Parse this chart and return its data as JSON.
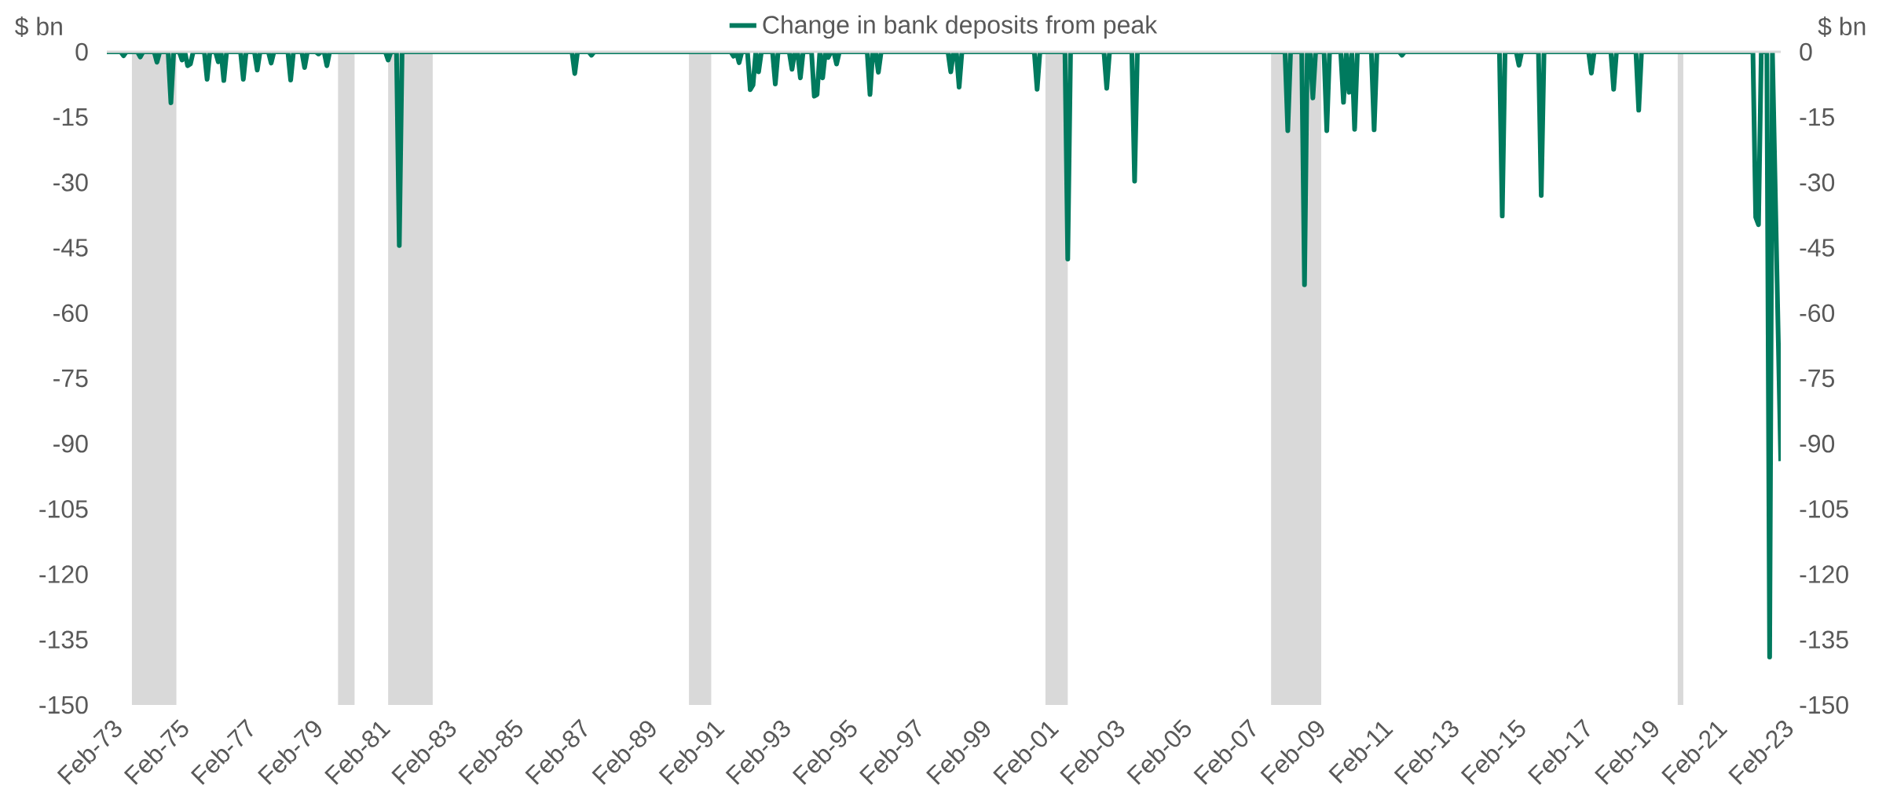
{
  "chart_data": {
    "type": "line",
    "ylabel": "$ bn",
    "y2label": "$ bn",
    "legend": "top",
    "xlim": [
      "1973-02",
      "2023-03"
    ],
    "xticks": [
      {
        "value": "1973-02",
        "label": "Feb-73"
      },
      {
        "value": "1975-02",
        "label": "Feb-75"
      },
      {
        "value": "1977-02",
        "label": "Feb-77"
      },
      {
        "value": "1979-02",
        "label": "Feb-79"
      },
      {
        "value": "1981-02",
        "label": "Feb-81"
      },
      {
        "value": "1983-02",
        "label": "Feb-83"
      },
      {
        "value": "1985-02",
        "label": "Feb-85"
      },
      {
        "value": "1987-02",
        "label": "Feb-87"
      },
      {
        "value": "1989-02",
        "label": "Feb-89"
      },
      {
        "value": "1991-02",
        "label": "Feb-91"
      },
      {
        "value": "1993-02",
        "label": "Feb-93"
      },
      {
        "value": "1995-02",
        "label": "Feb-95"
      },
      {
        "value": "1997-02",
        "label": "Feb-97"
      },
      {
        "value": "1999-02",
        "label": "Feb-99"
      },
      {
        "value": "2001-02",
        "label": "Feb-01"
      },
      {
        "value": "2003-02",
        "label": "Feb-03"
      },
      {
        "value": "2005-02",
        "label": "Feb-05"
      },
      {
        "value": "2007-02",
        "label": "Feb-07"
      },
      {
        "value": "2009-02",
        "label": "Feb-09"
      },
      {
        "value": "2011-02",
        "label": "Feb-11"
      },
      {
        "value": "2013-02",
        "label": "Feb-13"
      },
      {
        "value": "2015-02",
        "label": "Feb-15"
      },
      {
        "value": "2017-02",
        "label": "Feb-17"
      },
      {
        "value": "2019-02",
        "label": "Feb-19"
      },
      {
        "value": "2021-02",
        "label": "Feb-21"
      },
      {
        "value": "2023-02",
        "label": "Feb-23"
      }
    ],
    "ylim": [
      -150,
      0
    ],
    "yticks": [
      0,
      -15,
      -30,
      -45,
      -60,
      -75,
      -90,
      -105,
      -120,
      -135,
      -150
    ],
    "y2lim": [
      -150,
      0
    ],
    "y2ticks": [
      0,
      -15,
      -30,
      -45,
      -60,
      -75,
      -90,
      -105,
      -120,
      -135,
      -150
    ],
    "bands": [
      {
        "axis": "x",
        "from": "1973-11",
        "to": "1975-03",
        "color": "#d9d9d9"
      },
      {
        "axis": "x",
        "from": "1980-01",
        "to": "1980-07",
        "color": "#d9d9d9"
      },
      {
        "axis": "x",
        "from": "1981-07",
        "to": "1982-11",
        "color": "#d9d9d9"
      },
      {
        "axis": "x",
        "from": "1990-07",
        "to": "1991-03",
        "color": "#d9d9d9"
      },
      {
        "axis": "x",
        "from": "2001-03",
        "to": "2001-11",
        "color": "#d9d9d9"
      },
      {
        "axis": "x",
        "from": "2007-12",
        "to": "2009-06",
        "color": "#d9d9d9"
      },
      {
        "axis": "x",
        "from": "2020-02",
        "to": "2020-04",
        "color": "#d9d9d9"
      }
    ],
    "series": [
      {
        "name": "Change in bank deposits from peak",
        "color": "#007a5e",
        "x": [
          "1973-02",
          "1973-07",
          "1973-08",
          "1973-09",
          "1974-01",
          "1974-02",
          "1974-03",
          "1974-07",
          "1974-08",
          "1974-09",
          "1974-12",
          "1975-01",
          "1975-02",
          "1975-04",
          "1975-05",
          "1975-06",
          "1975-07",
          "1975-08",
          "1975-09",
          "1976-01",
          "1976-02",
          "1976-03",
          "1976-05",
          "1976-06",
          "1976-07",
          "1976-08",
          "1976-09",
          "1977-02",
          "1977-03",
          "1977-04",
          "1977-07",
          "1977-08",
          "1977-09",
          "1977-12",
          "1978-01",
          "1978-02",
          "1978-07",
          "1978-08",
          "1978-09",
          "1978-12",
          "1979-01",
          "1979-02",
          "1979-05",
          "1979-06",
          "1979-07",
          "1979-08",
          "1979-09",
          "1979-10",
          "1981-06",
          "1981-07",
          "1981-08",
          "1981-10",
          "1981-11",
          "1981-12",
          "1987-01",
          "1987-02",
          "1987-03",
          "1987-07",
          "1987-08",
          "1987-09",
          "1991-10",
          "1991-11",
          "1991-12",
          "1992-01",
          "1992-02",
          "1992-04",
          "1992-05",
          "1992-06",
          "1992-07",
          "1992-08",
          "1992-09",
          "1993-01",
          "1993-02",
          "1993-03",
          "1993-07",
          "1993-08",
          "1993-09",
          "1993-10",
          "1993-11",
          "1993-12",
          "1994-03",
          "1994-04",
          "1994-05",
          "1994-06",
          "1994-07",
          "1994-08",
          "1994-09",
          "1994-10",
          "1994-11",
          "1994-12",
          "1995-01",
          "1995-11",
          "1995-12",
          "1996-01",
          "1996-02",
          "1996-03",
          "1996-04",
          "1998-04",
          "1998-05",
          "1998-06",
          "1998-07",
          "1998-08",
          "1998-09",
          "2000-11",
          "2000-12",
          "2001-01",
          "2001-10",
          "2001-11",
          "2001-12",
          "2002-12",
          "2003-01",
          "2003-02",
          "2003-10",
          "2003-11",
          "2003-12",
          "2008-05",
          "2008-06",
          "2008-07",
          "2008-11",
          "2008-12",
          "2009-01",
          "2009-02",
          "2009-03",
          "2009-04",
          "2009-07",
          "2009-08",
          "2009-09",
          "2010-01",
          "2010-02",
          "2010-03",
          "2010-04",
          "2010-05",
          "2010-06",
          "2010-07",
          "2010-12",
          "2011-01",
          "2011-02",
          "2011-10",
          "2011-11",
          "2011-12",
          "2014-10",
          "2014-11",
          "2014-12",
          "2015-04",
          "2015-05",
          "2015-06",
          "2015-12",
          "2016-01",
          "2016-02",
          "2017-06",
          "2017-07",
          "2017-08",
          "2018-02",
          "2018-03",
          "2018-04",
          "2018-11",
          "2018-12",
          "2019-01",
          "2022-05",
          "2022-06",
          "2022-07",
          "2022-08",
          "2022-10",
          "2022-11",
          "2022-12",
          "2023-03"
        ],
        "values": [
          0,
          0,
          -0.9,
          0,
          0,
          -1.2,
          0,
          0,
          -2.4,
          0,
          0,
          -11.7,
          0,
          0,
          -1.9,
          0,
          -3.2,
          -2.8,
          0,
          0,
          -6.3,
          0,
          0,
          -2.3,
          0,
          -6.6,
          0,
          0,
          -6.3,
          0,
          0,
          -4.2,
          0,
          0,
          -2.6,
          0,
          0,
          -6.5,
          0,
          0,
          -3.6,
          0,
          0,
          -0.5,
          0,
          0,
          -3.2,
          0,
          0,
          -1.9,
          0,
          0,
          -44.5,
          0,
          0,
          -5.0,
          0,
          0,
          -0.8,
          0,
          0,
          -1.0,
          0,
          -2.5,
          0,
          0,
          -8.7,
          -7.6,
          0,
          -4.6,
          0,
          0,
          -7.4,
          0,
          0,
          -4.0,
          0,
          0,
          -6.0,
          0,
          0,
          -10.2,
          -9.8,
          0,
          -6.0,
          0,
          -1.3,
          0,
          0,
          -2.8,
          0,
          0,
          -9.8,
          0,
          0,
          -4.7,
          0,
          0,
          -4.6,
          0,
          0,
          -8.1,
          0,
          0,
          -8.6,
          0,
          0,
          -47.6,
          0,
          0,
          -8.4,
          0,
          0,
          -29.7,
          0,
          0,
          -18.1,
          0,
          0,
          -53.5,
          0,
          0,
          -10.6,
          0,
          0,
          -18.1,
          0,
          0,
          -11.6,
          0,
          -9.3,
          0,
          -17.8,
          0,
          0,
          -17.9,
          0,
          0,
          -0.8,
          0,
          0,
          -37.7,
          0,
          0,
          -3.1,
          0,
          0,
          -33.0,
          0,
          0,
          -4.9,
          0,
          0,
          -8.6,
          0,
          0,
          -13.4,
          0,
          0,
          -38.0,
          -39.7,
          0,
          0,
          -139.0,
          0,
          -94.0
        ]
      }
    ]
  }
}
